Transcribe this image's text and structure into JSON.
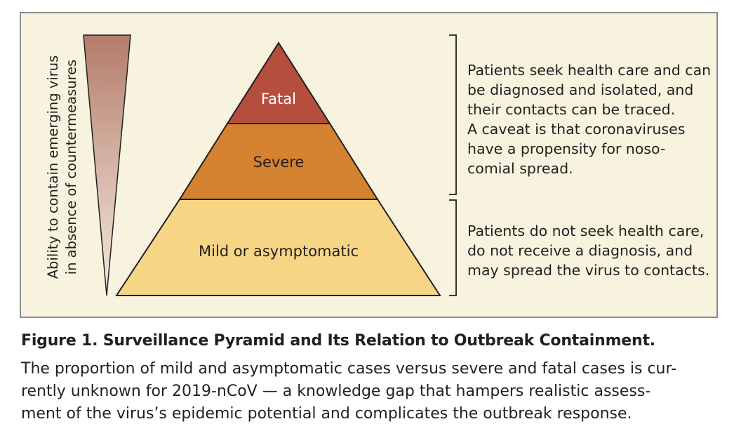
{
  "axis_label_line1": "Ability to contain emerging virus",
  "axis_label_line2": "in absence of countermeasures",
  "pyramid": {
    "top_label": "Fatal",
    "middle_label": "Severe",
    "bottom_label": "Mild or asymptomatic"
  },
  "upper_note": "Patients seek health care and can\nbe diagnosed and isolated, and\ntheir contacts can be traced.\nA caveat is that coronaviruses\nhave a propensity for noso-\ncomial spread.",
  "lower_note": "Patients do not seek health care,\ndo not receive a diagnosis, and\nmay spread the virus to contacts.",
  "caption": {
    "title": "Figure 1. Surveillance Pyramid and Its Relation to Outbreak Containment.",
    "body": "The proportion of mild and asymptomatic cases versus severe and fatal cases is cur-\nrently unknown for 2019-nCoV — a knowledge gap that hampers realistic assess-\nment of the virus’s epidemic potential and complicates the outbreak response."
  },
  "colors": {
    "panel_background": "#f7f3df",
    "fatal_tier": "#b54e3c",
    "severe_tier": "#d4822f",
    "mild_tier": "#f6d585",
    "wedge_top": "#b47c6a",
    "wedge_bottom": "#f5ece0"
  }
}
